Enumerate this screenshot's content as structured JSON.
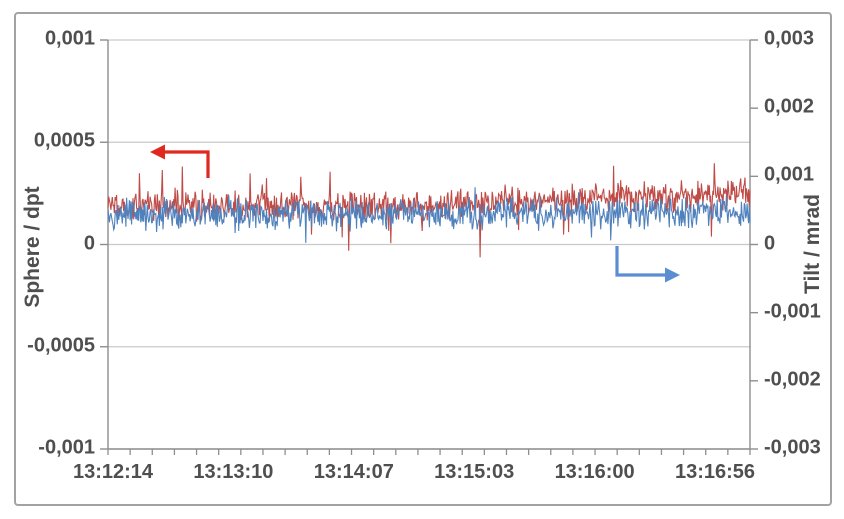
{
  "chart_data": {
    "type": "line",
    "title": "",
    "grid": true,
    "legend": false,
    "x_axis": {
      "label": "",
      "tick_labels": [
        "13:12:14",
        "13:13:10",
        "13:14:07",
        "13:15:03",
        "13:16:00",
        "13:16:56"
      ],
      "minor_ticks_between_labels": 4
    },
    "left_axis": {
      "label": "Sphere / dpt",
      "tick_labels": [
        "0,001",
        "0,0005",
        "0",
        "-0,0005",
        "-0,001"
      ],
      "tick_values": [
        0.001,
        0.0005,
        0,
        -0.0005,
        -0.001
      ],
      "range": [
        -0.001,
        0.001
      ]
    },
    "right_axis": {
      "label": "Tilt / mrad",
      "tick_labels": [
        "0,003",
        "0,002",
        "0,001",
        "0",
        "-0,001",
        "-0,002",
        "-0,003"
      ],
      "tick_values": [
        0.003,
        0.002,
        0.001,
        0,
        -0.001,
        -0.002,
        -0.003
      ],
      "range": [
        -0.003,
        0.003
      ]
    },
    "series": [
      {
        "name": "Sphere",
        "axis": "left",
        "color": "#bf4b47",
        "unit": "dpt",
        "mean": 0.00019,
        "noise_amp": 9e-05,
        "spike_amp": 0.00013,
        "trend_end_delta": 6e-05,
        "n_points": 900,
        "seed": 1234567
      },
      {
        "name": "Tilt",
        "axis": "right",
        "color": "#4f81bd",
        "unit": "mrad",
        "mean": 0.00044,
        "noise_amp": 0.00026,
        "spike_amp": 0.00022,
        "trend_end_delta": 4e-05,
        "n_points": 900,
        "seed": 424242
      }
    ],
    "annotations": [
      {
        "id": "sphere-axis-arrow",
        "color": "#e0281e",
        "head": "left",
        "points": [
          [
            208,
            178
          ],
          [
            208,
            152
          ],
          [
            150,
            152
          ]
        ]
      },
      {
        "id": "tilt-axis-arrow",
        "color": "#5b8dd3",
        "head": "right",
        "points": [
          [
            617,
            246
          ],
          [
            617,
            275
          ],
          [
            680,
            275
          ]
        ]
      }
    ]
  }
}
